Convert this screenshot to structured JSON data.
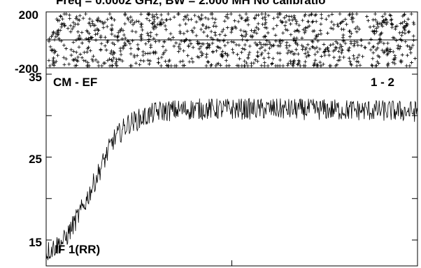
{
  "title": "Freq = 0.0002 GHz, BW = 2.000 MH   No calibratio",
  "phase_panel": {
    "y_ticks": [
      "200",
      "-200"
    ],
    "ylim": [
      -200,
      200
    ]
  },
  "amp_panel": {
    "y_ticks": [
      "35",
      "25",
      "15"
    ],
    "baseline_label": "CM - EF",
    "channel_label": "1 - 2",
    "if_label": "IF 1(RR)"
  },
  "chart_data": [
    {
      "type": "scatter",
      "panel": "phase",
      "description_marker": "plus",
      "ylim": [
        -200,
        200
      ],
      "y_ticks": [
        200,
        -200
      ],
      "points_count": 1000,
      "value_range": [
        -200,
        200
      ]
    },
    {
      "type": "line",
      "panel": "amplitude",
      "ylim": [
        12,
        35
      ],
      "y_ticks": [
        35,
        25,
        15
      ],
      "xlim": [
        0,
        1
      ],
      "x_ticks_fraction": [
        0.5
      ],
      "knots": [
        [
          0.0,
          13.5
        ],
        [
          0.05,
          15.0
        ],
        [
          0.1,
          19.0
        ],
        [
          0.15,
          24.0
        ],
        [
          0.18,
          27.0
        ],
        [
          0.22,
          29.0
        ],
        [
          0.3,
          30.5
        ],
        [
          0.4,
          30.8
        ],
        [
          0.6,
          30.8
        ],
        [
          0.8,
          30.7
        ],
        [
          1.0,
          30.5
        ]
      ],
      "noise_amplitude": 1.3
    }
  ]
}
